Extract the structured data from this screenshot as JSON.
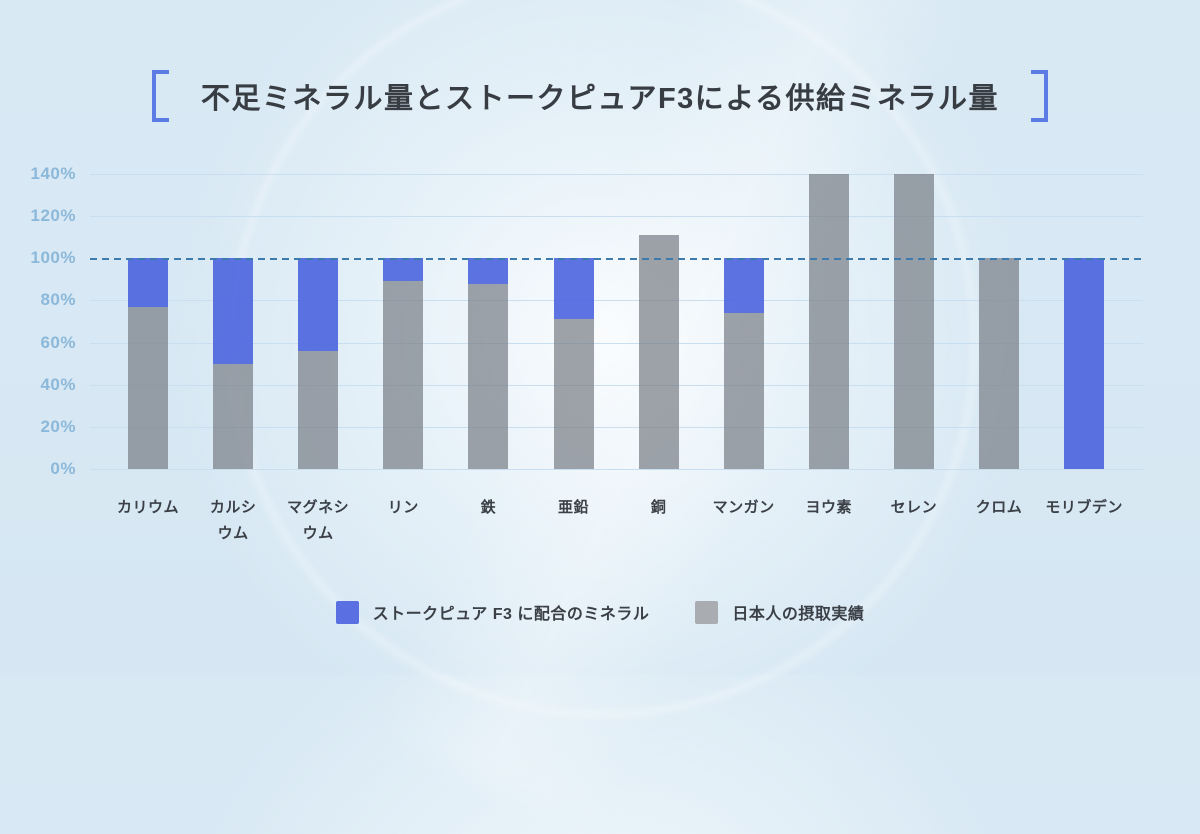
{
  "title": {
    "text": "不足ミネラル量とストークピュアF3による供給ミネラル量"
  },
  "y_axis": {
    "tick_labels": [
      "140%",
      "120%",
      "100%",
      "80%",
      "60%",
      "40%",
      "20%",
      "0%"
    ]
  },
  "legend": [
    {
      "id": "f3-mineral",
      "label": "ストークピュア F3 に配合のミネラル",
      "color": "#5A6FE1"
    },
    {
      "id": "japanese-intake",
      "label": "日本人の摂取実績",
      "color": "#A9ADB1"
    }
  ],
  "colors": {
    "accent_blue": "#5A6FE1",
    "bar_gray": "#9EA3A8",
    "reference_line": "#3D7AAE",
    "grid": "#C9DFEF",
    "axis_label": "#8CB8DA",
    "text_dark": "#3B4047",
    "background": "#D9E9F4",
    "bracket": "#5C7BE5"
  },
  "chart_data": {
    "type": "bar",
    "stacked": true,
    "title": "不足ミネラル量とストークピュアF3による供給ミネラル量",
    "categories": [
      "カリウム",
      "カルシ\nウム",
      "マグネシ\nウム",
      "リン",
      "鉄",
      "亜鉛",
      "銅",
      "マンガン",
      "ヨウ素",
      "セレン",
      "クロム",
      "モリブデン"
    ],
    "category_ids": [
      "potassium",
      "calcium",
      "magnesium",
      "phosphorus",
      "iron",
      "zinc",
      "copper",
      "manganese",
      "iodine",
      "selenium",
      "chromium",
      "molybdenum"
    ],
    "series": [
      {
        "name": "日本人の摂取実績",
        "role": "gray",
        "values": [
          77,
          50,
          56,
          89,
          88,
          71,
          111,
          74,
          140,
          140,
          100,
          0
        ]
      },
      {
        "name": "ストークピュア F3 に配合のミネラル",
        "role": "blue",
        "values": [
          23,
          50,
          44,
          11,
          12,
          29,
          0,
          26,
          0,
          0,
          0,
          100
        ]
      }
    ],
    "value_unit": "%",
    "ylim": [
      0,
      140
    ],
    "y_ticks_percent": [
      140,
      120,
      100,
      80,
      60,
      40,
      20,
      0
    ],
    "reference_line_percent": 100,
    "grid": true,
    "legend_position": "bottom"
  }
}
